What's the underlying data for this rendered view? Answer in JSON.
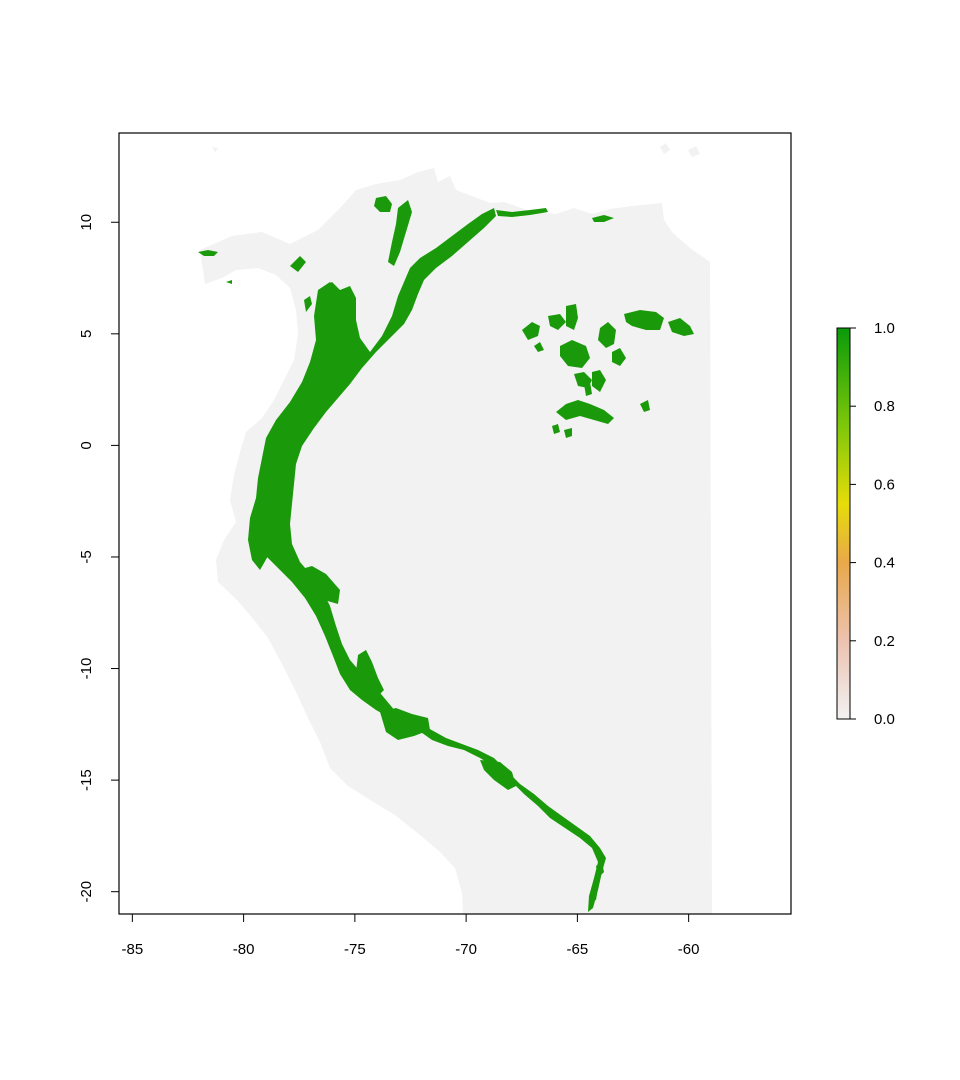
{
  "map": {
    "projection": "longitude-latitude",
    "xlim": [
      -85.6,
      -55.4
    ],
    "ylim": [
      -21.0,
      14.0
    ],
    "x_ticks": [
      -85,
      -80,
      -75,
      -70,
      -65,
      -60
    ],
    "x_tick_labels": [
      "-85",
      "-80",
      "-75",
      "-70",
      "-65",
      "-60"
    ],
    "y_ticks": [
      -20,
      -15,
      -10,
      -5,
      0,
      5,
      10
    ],
    "y_tick_labels": [
      "-20",
      "-15",
      "-10",
      "-5",
      "0",
      "5",
      "10"
    ],
    "background_color": "#f2f2f2",
    "presence_color": "#1a9a0b",
    "raster_type": "habitat suitability"
  },
  "legend": {
    "type": "color-bar",
    "placement": "right",
    "range": [
      0,
      1
    ],
    "ticks": [
      0.0,
      0.2,
      0.4,
      0.6,
      0.8,
      1.0
    ],
    "tick_labels": [
      "0.0",
      "0.2",
      "0.4",
      "0.6",
      "0.8",
      "1.0"
    ],
    "stops": [
      {
        "value": 0.0,
        "color": "#f2f2f2"
      },
      {
        "value": 0.2,
        "color": "#ecc2b0"
      },
      {
        "value": 0.4,
        "color": "#e8a84a"
      },
      {
        "value": 0.55,
        "color": "#e6dc0a"
      },
      {
        "value": 0.75,
        "color": "#7ec70a"
      },
      {
        "value": 1.0,
        "color": "#0a9a0a"
      }
    ]
  }
}
